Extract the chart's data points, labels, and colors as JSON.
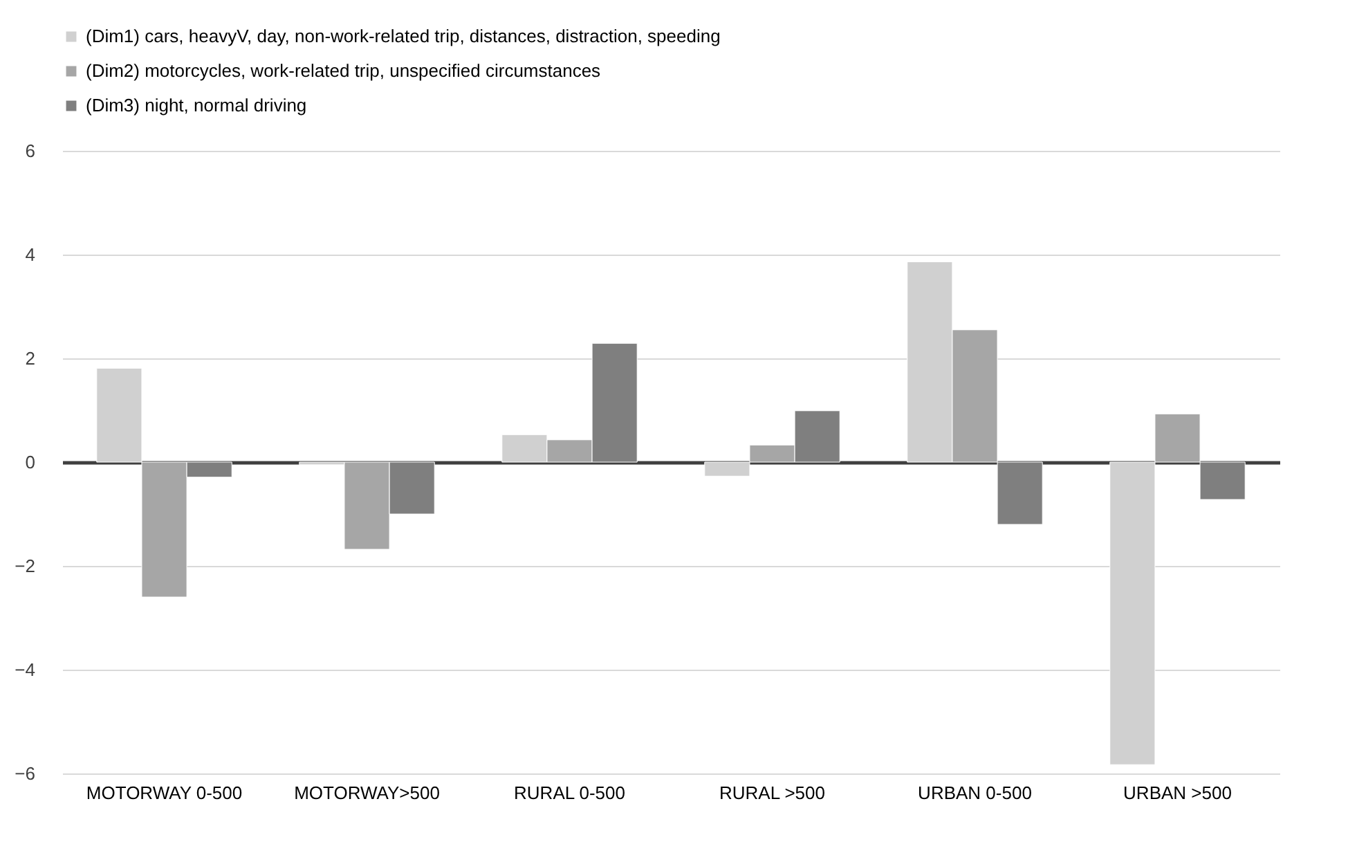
{
  "chart_data": {
    "type": "bar",
    "categories": [
      "MOTORWAY 0-500",
      "MOTORWAY>500",
      "RURAL 0-500",
      "RURAL >500",
      "URBAN 0-500",
      "URBAN >500"
    ],
    "series": [
      {
        "name": "(Dim1) cars, heavyV, day, non-work-related trip, distances, distraction, speeding",
        "color": "#d0d0d0",
        "values": [
          1.81,
          -0.05,
          0.53,
          -0.27,
          3.86,
          -5.83
        ]
      },
      {
        "name": "(Dim2) motorcycles,  work-related trip, unspecified circumstances",
        "color": "#a6a6a6",
        "values": [
          -2.6,
          -1.68,
          0.43,
          0.33,
          2.55,
          0.93
        ]
      },
      {
        "name": "(Dim3) night,  normal driving",
        "color": "#7f7f7f",
        "values": [
          -0.29,
          -1.0,
          2.29,
          0.99,
          -1.2,
          -0.72
        ]
      }
    ],
    "ylim": [
      -6,
      6
    ],
    "yticks": [
      -6,
      -4,
      -2,
      0,
      2,
      4,
      6
    ],
    "grid": "y",
    "legend": "top"
  }
}
